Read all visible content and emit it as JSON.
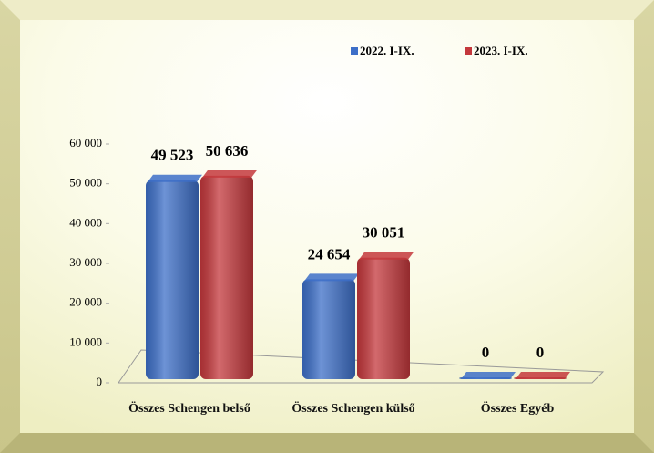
{
  "chart_data": {
    "type": "bar",
    "categories": [
      "Összes Schengen belső",
      "Összes Schengen külső",
      "Összes Egyéb"
    ],
    "series": [
      {
        "name": "2022. I-IX.",
        "color": "#3d6fc8",
        "values": [
          49523,
          24654,
          0
        ],
        "value_labels": [
          "49 523",
          "24 654",
          "0"
        ]
      },
      {
        "name": "2023. I-IX.",
        "color": "#c4383c",
        "values": [
          50636,
          30051,
          0
        ],
        "value_labels": [
          "50 636",
          "30 051",
          "0"
        ]
      }
    ],
    "ylim": [
      0,
      60000
    ],
    "yticks": [
      0,
      {
        "value": 10000,
        "label": "10 000"
      },
      {
        "value": 20000,
        "label": "20 000"
      },
      {
        "value": 30000,
        "label": "30 000"
      },
      {
        "value": 40000,
        "label": "40 000"
      },
      {
        "value": 50000,
        "label": "50 000"
      },
      {
        "value": 60000,
        "label": "60 000"
      }
    ],
    "legend": "top-right"
  }
}
